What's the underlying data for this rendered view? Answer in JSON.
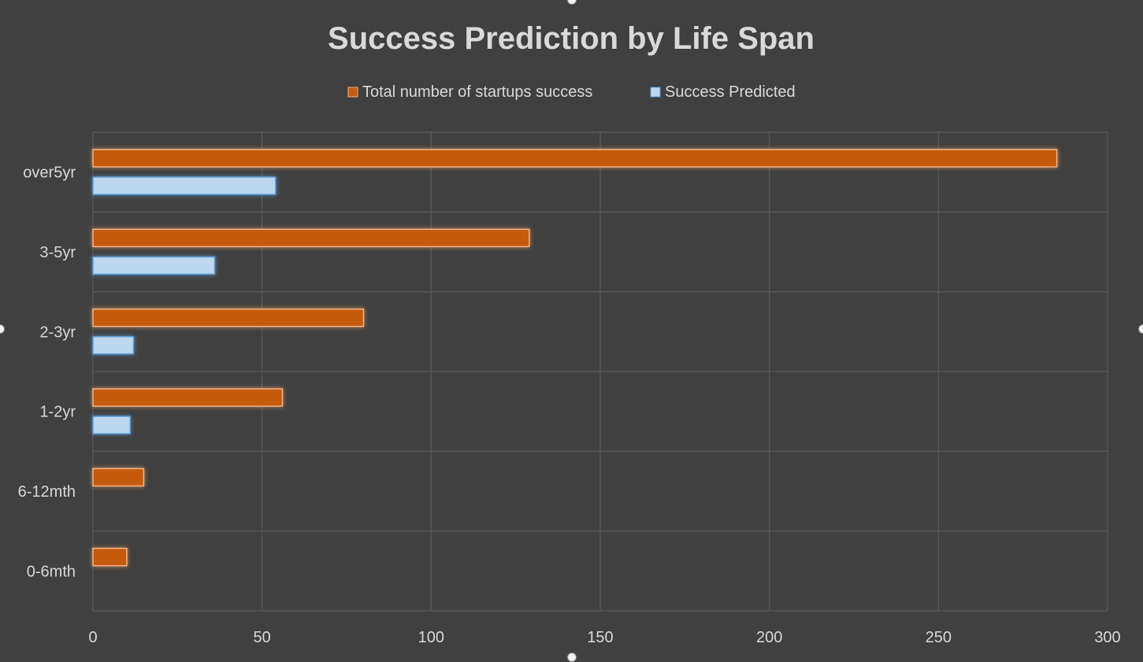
{
  "chart_data": {
    "type": "bar",
    "orientation": "horizontal",
    "title": "Success Prediction by Life Span",
    "categories": [
      "0-6mth",
      "6-12mth",
      "1-2yr",
      "2-3yr",
      "3-5yr",
      "over5yr"
    ],
    "series": [
      {
        "name": "Total number of startups success",
        "color": "#c55a11",
        "values": [
          10,
          15,
          56,
          80,
          129,
          285
        ]
      },
      {
        "name": "Success Predicted",
        "color": "#bdd7ee",
        "values": [
          0,
          0,
          11,
          12,
          36,
          54
        ]
      }
    ],
    "xlim": [
      0,
      300
    ],
    "xticks": [
      "0",
      "50",
      "100",
      "150",
      "200",
      "250",
      "300"
    ],
    "grid": true,
    "legend_position": "top"
  }
}
